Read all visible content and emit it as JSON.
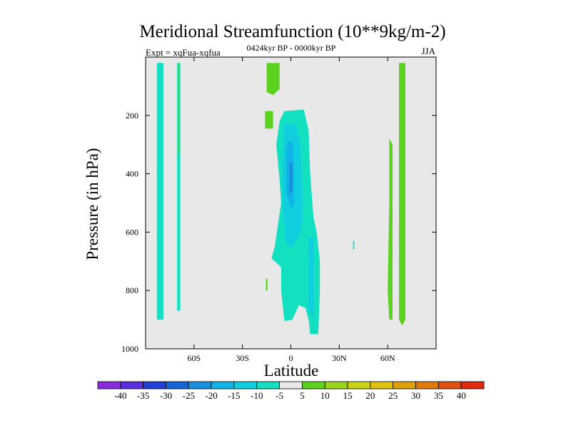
{
  "chart_data": {
    "type": "contour",
    "title": "Meridional Streamfunction (10**9kg/m-2)",
    "subtitle": "0424kyr BP - 0000kyr BP",
    "left_note": "Expt = xqFua-xqfua",
    "right_note": "JJA",
    "xlabel": "Latitude",
    "ylabel": "Pressure (in hPa)",
    "xlim": [
      -90,
      90
    ],
    "ylim": [
      1000,
      0
    ],
    "x_ticks": [
      {
        "value": -60,
        "label": "60S"
      },
      {
        "value": -30,
        "label": "30S"
      },
      {
        "value": 0,
        "label": "0"
      },
      {
        "value": 30,
        "label": "30N"
      },
      {
        "value": 60,
        "label": "60N"
      }
    ],
    "y_ticks": [
      {
        "value": 200,
        "label": "200"
      },
      {
        "value": 400,
        "label": "400"
      },
      {
        "value": 600,
        "label": "600"
      },
      {
        "value": 800,
        "label": "800"
      },
      {
        "value": 1000,
        "label": "1000"
      }
    ],
    "background_level": "0",
    "colorbar": {
      "levels": [
        -40,
        -35,
        -30,
        -25,
        -20,
        -15,
        -10,
        -5,
        5,
        10,
        15,
        20,
        25,
        30,
        35,
        40
      ],
      "labels": [
        "-40",
        "-35",
        "-30",
        "-25",
        "-20",
        "-15",
        "-10",
        "-5",
        "5",
        "10",
        "15",
        "20",
        "25",
        "30",
        "35",
        "40"
      ],
      "colors": [
        "#8a2be2",
        "#5a2ee0",
        "#1f3fd6",
        "#1466d6",
        "#1a8fe0",
        "#12b3e6",
        "#10cde0",
        "#13e0c0",
        "#e8e8e8",
        "#5ad21e",
        "#9bd41c",
        "#c8d414",
        "#e0c20e",
        "#e0a00a",
        "#e07a0a",
        "#e05010",
        "#e02a0a"
      ]
    },
    "regions": [
      {
        "name": "contour-sh-highlat-minus5",
        "level": "-5",
        "color": "#13e0c0",
        "points": [
          [
            -83,
            20
          ],
          [
            -79,
            20
          ],
          [
            -79,
            900
          ],
          [
            -83,
            900
          ]
        ]
      },
      {
        "name": "contour-sh-highlat-minus5-b",
        "level": "-5",
        "color": "#13e0c0",
        "points": [
          [
            -70.5,
            20
          ],
          [
            -68.5,
            20
          ],
          [
            -68.5,
            870
          ],
          [
            -70.5,
            870
          ]
        ]
      },
      {
        "name": "contour-sh-highlat-plus5",
        "level": "5",
        "color": "#5ad21e",
        "points": [
          [
            -69.5,
            20
          ],
          [
            -68.8,
            20
          ],
          [
            -68.8,
            330
          ],
          [
            -69.5,
            330
          ]
        ]
      },
      {
        "name": "contour-top-plus5",
        "level": "5",
        "color": "#5ad21e",
        "points": [
          [
            -15,
            20
          ],
          [
            -7,
            20
          ],
          [
            -7,
            110
          ],
          [
            -11,
            130
          ],
          [
            -15,
            120
          ]
        ]
      },
      {
        "name": "contour-upper-plus5-small",
        "level": "5",
        "color": "#5ad21e",
        "points": [
          [
            -16,
            185
          ],
          [
            -11,
            185
          ],
          [
            -11,
            245
          ],
          [
            -16,
            245
          ]
        ]
      },
      {
        "name": "contour-main-minus5",
        "level": "-5",
        "color": "#13e0c0",
        "points": [
          [
            -4,
            185
          ],
          [
            8,
            180
          ],
          [
            11,
            250
          ],
          [
            12,
            400
          ],
          [
            14,
            550
          ],
          [
            16,
            600
          ],
          [
            18,
            700
          ],
          [
            18,
            800
          ],
          [
            17,
            950
          ],
          [
            12,
            950
          ],
          [
            11,
            900
          ],
          [
            9,
            860
          ],
          [
            5,
            850
          ],
          [
            1,
            900
          ],
          [
            -4,
            905
          ],
          [
            -6,
            800
          ],
          [
            -6,
            720
          ],
          [
            -12,
            690
          ],
          [
            -10,
            650
          ],
          [
            -6,
            500
          ],
          [
            -7,
            420
          ],
          [
            -9,
            300
          ],
          [
            -7,
            220
          ]
        ]
      },
      {
        "name": "contour-main-minus10",
        "level": "-10",
        "color": "#10cde0",
        "points": [
          [
            -4,
            230
          ],
          [
            3,
            230
          ],
          [
            6,
            300
          ],
          [
            7,
            450
          ],
          [
            7,
            560
          ],
          [
            6,
            600
          ],
          [
            1,
            650
          ],
          [
            -3,
            640
          ],
          [
            -5,
            500
          ],
          [
            -5,
            350
          ]
        ]
      },
      {
        "name": "contour-main-minus15",
        "level": "-15",
        "color": "#12b3e6",
        "points": [
          [
            -2,
            290
          ],
          [
            1,
            290
          ],
          [
            2,
            400
          ],
          [
            2,
            500
          ],
          [
            0,
            520
          ],
          [
            -3,
            460
          ],
          [
            -3,
            340
          ]
        ]
      },
      {
        "name": "contour-main-minus20",
        "level": "-20",
        "color": "#1a8fe0",
        "points": [
          [
            -1,
            360
          ],
          [
            1,
            360
          ],
          [
            1,
            460
          ],
          [
            -1,
            470
          ]
        ]
      },
      {
        "name": "contour-lower-minus5-right",
        "level": "-10",
        "color": "#10cde0",
        "points": [
          [
            11,
            620
          ],
          [
            14,
            620
          ],
          [
            14,
            900
          ],
          [
            11,
            860
          ]
        ]
      },
      {
        "name": "contour-mid-minus5-dot",
        "level": "-5",
        "color": "#13e0c0",
        "points": [
          [
            38.5,
            630
          ],
          [
            39.3,
            630
          ],
          [
            39.3,
            660
          ],
          [
            38.5,
            660
          ]
        ]
      },
      {
        "name": "contour-lower-plus5-dot",
        "level": "5",
        "color": "#5ad21e",
        "points": [
          [
            -15.5,
            760
          ],
          [
            -14.5,
            760
          ],
          [
            -14.5,
            800
          ],
          [
            -15.5,
            800
          ]
        ]
      },
      {
        "name": "contour-nh-plus5-left",
        "level": "5",
        "color": "#5ad21e",
        "points": [
          [
            61,
            280
          ],
          [
            63,
            300
          ],
          [
            63,
            900
          ],
          [
            61,
            900
          ],
          [
            60,
            800
          ],
          [
            61,
            500
          ]
        ]
      },
      {
        "name": "contour-nh-plus5-right",
        "level": "5",
        "color": "#5ad21e",
        "points": [
          [
            67,
            20
          ],
          [
            71,
            20
          ],
          [
            71,
            900
          ],
          [
            69,
            920
          ],
          [
            67,
            900
          ]
        ]
      }
    ]
  }
}
